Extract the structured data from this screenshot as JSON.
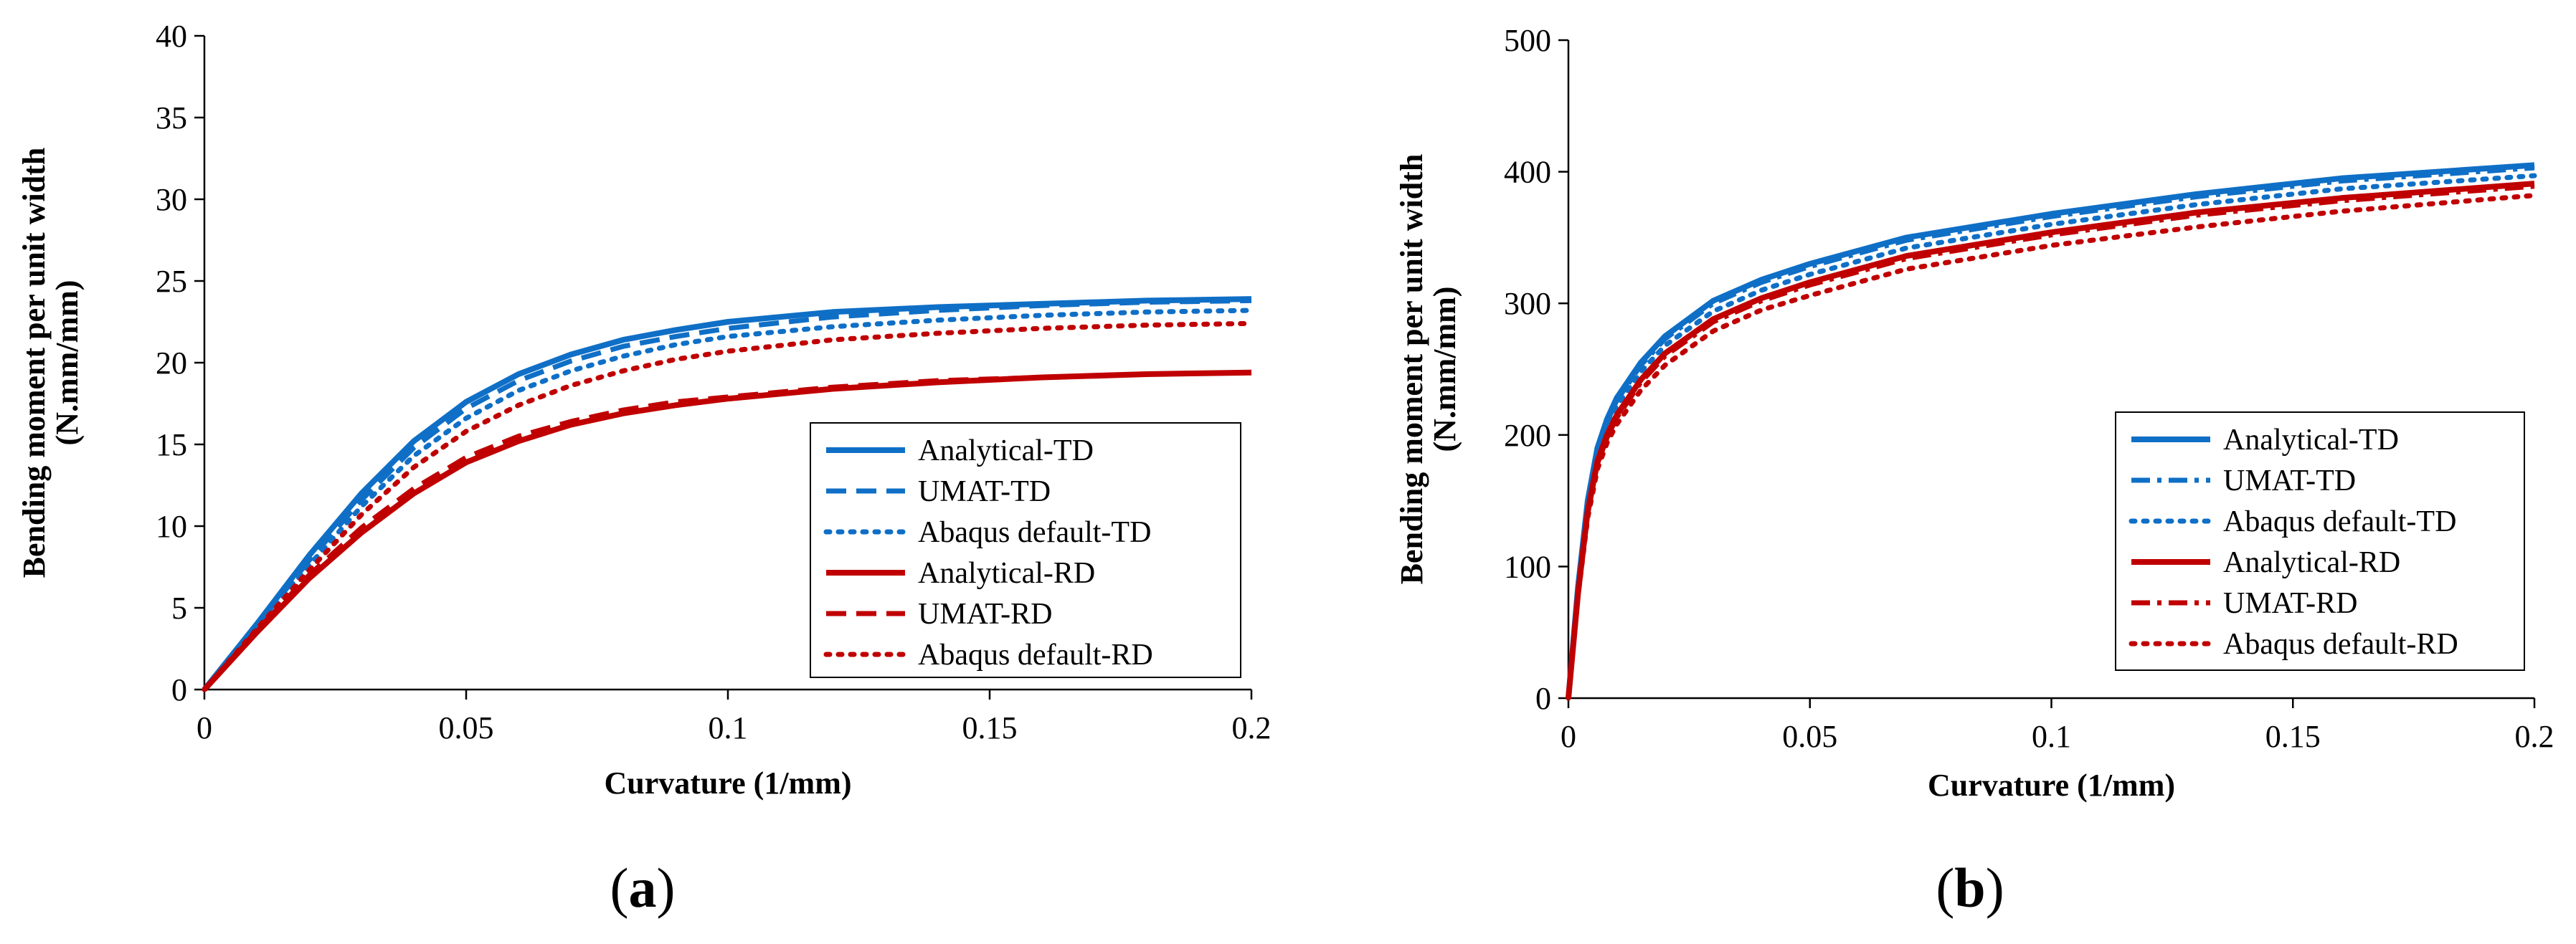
{
  "panels": [
    {
      "label": "(a)",
      "label_inner": "a",
      "chart_data": {
        "type": "line",
        "title": "",
        "xlabel": "Curvature (1/mm)",
        "ylabel_line1": "Bending moment per unit width",
        "ylabel_line2": "(N.mm/mm)",
        "xlim": [
          0,
          0.2
        ],
        "ylim": [
          0,
          40
        ],
        "xticks": [
          0,
          0.05,
          0.1,
          0.15,
          0.2
        ],
        "xtick_labels": [
          "0",
          "0.05",
          "0.1",
          "0.15",
          "0.2"
        ],
        "yticks": [
          0,
          5,
          10,
          15,
          20,
          25,
          30,
          35,
          40
        ],
        "ytick_labels": [
          "0",
          "5",
          "10",
          "15",
          "20",
          "25",
          "30",
          "35",
          "40"
        ],
        "grid": false,
        "legend_position": "right",
        "series": [
          {
            "name": "Analytical-TD",
            "color": "#0f6fc6",
            "style": "solid",
            "x": [
              0,
              0.01,
              0.02,
              0.03,
              0.04,
              0.05,
              0.06,
              0.07,
              0.08,
              0.09,
              0.1,
              0.12,
              0.14,
              0.16,
              0.18,
              0.2
            ],
            "y": [
              0,
              4.0,
              8.2,
              12.0,
              15.2,
              17.6,
              19.3,
              20.5,
              21.4,
              22.0,
              22.5,
              23.1,
              23.4,
              23.6,
              23.8,
              23.9
            ]
          },
          {
            "name": "UMAT-TD",
            "color": "#0f6fc6",
            "style": "dashed",
            "x": [
              0,
              0.01,
              0.02,
              0.03,
              0.04,
              0.05,
              0.06,
              0.07,
              0.08,
              0.09,
              0.1,
              0.12,
              0.14,
              0.16,
              0.18,
              0.2
            ],
            "y": [
              0,
              3.9,
              7.9,
              11.6,
              14.8,
              17.2,
              18.9,
              20.1,
              21.0,
              21.6,
              22.1,
              22.8,
              23.2,
              23.5,
              23.7,
              23.8
            ]
          },
          {
            "name": "Abaqus default-TD",
            "color": "#0f6fc6",
            "style": "dotted",
            "x": [
              0,
              0.01,
              0.02,
              0.03,
              0.04,
              0.05,
              0.06,
              0.07,
              0.08,
              0.09,
              0.1,
              0.12,
              0.14,
              0.16,
              0.18,
              0.2
            ],
            "y": [
              0,
              3.8,
              7.6,
              11.2,
              14.3,
              16.6,
              18.3,
              19.5,
              20.4,
              21.1,
              21.6,
              22.2,
              22.6,
              22.9,
              23.1,
              23.2
            ]
          },
          {
            "name": "Analytical-RD",
            "color": "#c00000",
            "style": "solid",
            "x": [
              0,
              0.01,
              0.02,
              0.03,
              0.04,
              0.05,
              0.06,
              0.07,
              0.08,
              0.09,
              0.1,
              0.12,
              0.14,
              0.16,
              0.18,
              0.2
            ],
            "y": [
              0,
              3.5,
              6.8,
              9.6,
              12.0,
              13.9,
              15.2,
              16.2,
              16.9,
              17.4,
              17.8,
              18.4,
              18.8,
              19.1,
              19.3,
              19.4
            ]
          },
          {
            "name": "UMAT-RD",
            "color": "#c00000",
            "style": "dashed",
            "x": [
              0,
              0.01,
              0.02,
              0.03,
              0.04,
              0.05,
              0.06,
              0.07,
              0.08,
              0.09,
              0.1,
              0.12,
              0.14,
              0.16,
              0.18,
              0.2
            ],
            "y": [
              0,
              3.6,
              7.0,
              9.9,
              12.3,
              14.2,
              15.5,
              16.4,
              17.1,
              17.6,
              17.9,
              18.5,
              18.9,
              19.1,
              19.3,
              19.4
            ]
          },
          {
            "name": "Abaqus default-RD",
            "color": "#c00000",
            "style": "dotted",
            "x": [
              0,
              0.01,
              0.02,
              0.03,
              0.04,
              0.05,
              0.06,
              0.07,
              0.08,
              0.09,
              0.1,
              0.12,
              0.14,
              0.16,
              0.18,
              0.2
            ],
            "y": [
              0,
              3.7,
              7.3,
              10.7,
              13.6,
              15.8,
              17.4,
              18.6,
              19.5,
              20.2,
              20.7,
              21.4,
              21.8,
              22.1,
              22.3,
              22.4
            ]
          }
        ]
      }
    },
    {
      "label": "(b)",
      "label_inner": "b",
      "chart_data": {
        "type": "line",
        "title": "",
        "xlabel": "Curvature (1/mm)",
        "ylabel_line1": "Bending moment per unit width",
        "ylabel_line2": "(N.mm/mm)",
        "xlim": [
          0,
          0.2
        ],
        "ylim": [
          0,
          500
        ],
        "xticks": [
          0,
          0.05,
          0.1,
          0.15,
          0.2
        ],
        "xtick_labels": [
          "0",
          "0.05",
          "0.1",
          "0.15",
          "0.2"
        ],
        "yticks": [
          0,
          100,
          200,
          300,
          400,
          500
        ],
        "ytick_labels": [
          "0",
          "100",
          "200",
          "300",
          "400",
          "500"
        ],
        "grid": false,
        "legend_position": "right",
        "series": [
          {
            "name": "Analytical-TD",
            "color": "#0f6fc6",
            "style": "solid",
            "x": [
              0,
              0.002,
              0.004,
              0.006,
              0.008,
              0.01,
              0.015,
              0.02,
              0.03,
              0.04,
              0.05,
              0.07,
              0.1,
              0.13,
              0.16,
              0.2
            ],
            "y": [
              0,
              85,
              150,
              190,
              212,
              228,
              255,
              275,
              302,
              318,
              330,
              350,
              368,
              383,
              395,
              405
            ]
          },
          {
            "name": "UMAT-TD",
            "color": "#0f6fc6",
            "style": "dashdot",
            "x": [
              0,
              0.002,
              0.004,
              0.006,
              0.008,
              0.01,
              0.015,
              0.02,
              0.03,
              0.04,
              0.05,
              0.07,
              0.1,
              0.13,
              0.16,
              0.2
            ],
            "y": [
              0,
              85,
              148,
              188,
              210,
              226,
              253,
              273,
              300,
              316,
              328,
              348,
              366,
              381,
              393,
              403
            ]
          },
          {
            "name": "Abaqus default-TD",
            "color": "#0f6fc6",
            "style": "dotted",
            "x": [
              0,
              0.002,
              0.004,
              0.006,
              0.008,
              0.01,
              0.015,
              0.02,
              0.03,
              0.04,
              0.05,
              0.07,
              0.1,
              0.13,
              0.16,
              0.2
            ],
            "y": [
              0,
              84,
              146,
              185,
              207,
              222,
              248,
              268,
              294,
              310,
              322,
              342,
              360,
              375,
              387,
              397
            ]
          },
          {
            "name": "Analytical-RD",
            "color": "#c00000",
            "style": "solid",
            "x": [
              0,
              0.002,
              0.004,
              0.006,
              0.008,
              0.01,
              0.015,
              0.02,
              0.03,
              0.04,
              0.05,
              0.07,
              0.1,
              0.13,
              0.16,
              0.2
            ],
            "y": [
              0,
              80,
              142,
              180,
              200,
              215,
              242,
              262,
              288,
              304,
              316,
              336,
              354,
              369,
              380,
              391
            ]
          },
          {
            "name": "UMAT-RD",
            "color": "#c00000",
            "style": "dashdot",
            "x": [
              0,
              0.002,
              0.004,
              0.006,
              0.008,
              0.01,
              0.015,
              0.02,
              0.03,
              0.04,
              0.05,
              0.07,
              0.1,
              0.13,
              0.16,
              0.2
            ],
            "y": [
              0,
              80,
              140,
              178,
              198,
              213,
              240,
              260,
              286,
              302,
              314,
              334,
              352,
              367,
              378,
              389
            ]
          },
          {
            "name": "Abaqus default-RD",
            "color": "#c00000",
            "style": "dotted",
            "x": [
              0,
              0.002,
              0.004,
              0.006,
              0.008,
              0.01,
              0.015,
              0.02,
              0.03,
              0.04,
              0.05,
              0.07,
              0.1,
              0.13,
              0.16,
              0.2
            ],
            "y": [
              0,
              78,
              137,
              174,
              194,
              208,
              234,
              253,
              279,
              295,
              306,
              326,
              344,
              358,
              370,
              382
            ]
          }
        ]
      }
    }
  ]
}
